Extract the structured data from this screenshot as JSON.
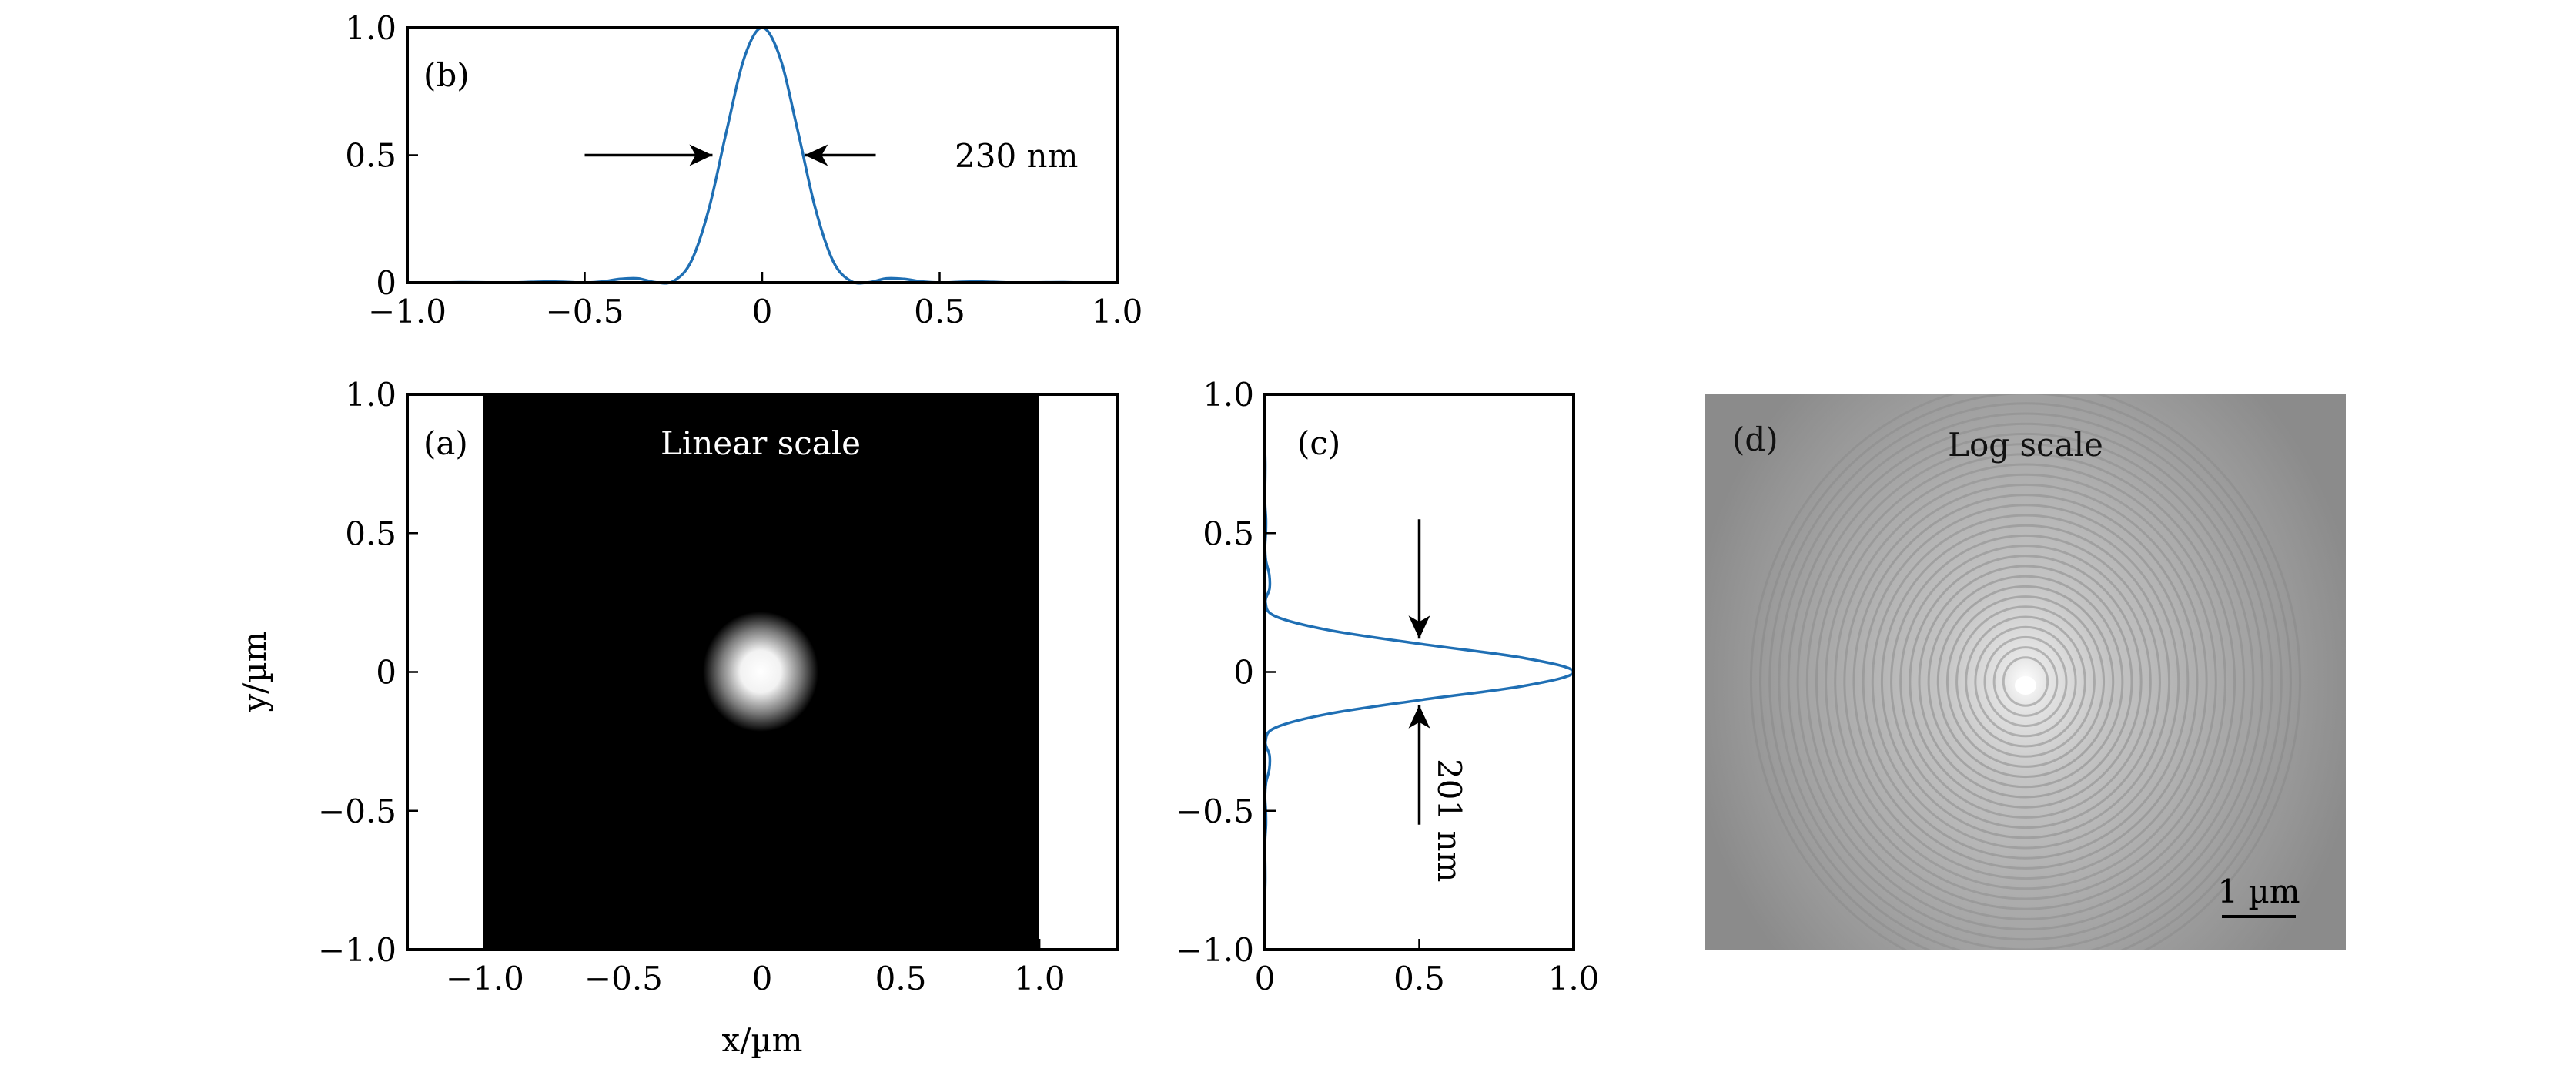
{
  "chart_data": [
    {
      "panel": "(b)",
      "type": "line",
      "xlim": [
        -1.0,
        1.0
      ],
      "ylim": [
        0,
        1.0
      ],
      "xticks": [
        "−1.0",
        "−0.5",
        "0",
        "0.5",
        "1.0"
      ],
      "xtick_values": [
        -1,
        -0.5,
        0,
        0.5,
        1
      ],
      "yticks": [
        "0",
        "0.5",
        "1.0"
      ],
      "ytick_values": [
        0,
        0.5,
        1
      ],
      "line_color": "#1f6fb4",
      "x": [
        -1.0,
        -0.95,
        -0.9,
        -0.85,
        -0.8,
        -0.75,
        -0.7,
        -0.65,
        -0.6,
        -0.55,
        -0.5,
        -0.45,
        -0.4,
        -0.35,
        -0.3,
        -0.25,
        -0.2,
        -0.15,
        -0.1,
        -0.05,
        0,
        0.05,
        0.1,
        0.15,
        0.2,
        0.25,
        0.3,
        0.35,
        0.4,
        0.45,
        0.5,
        0.55,
        0.6,
        0.65,
        0.7,
        0.75,
        0.8,
        0.85,
        0.9,
        0.95,
        1.0
      ],
      "y": [
        0.0004,
        0,
        0.0004,
        0.0014,
        0.0011,
        0.0003,
        0.0003,
        0.0025,
        0.0041,
        0.0024,
        0,
        0.004,
        0.0142,
        0.0164,
        0.0011,
        0.006,
        0.0837,
        0.29,
        0.597,
        0.884,
        1,
        0.884,
        0.597,
        0.29,
        0.0837,
        0.006,
        0.0011,
        0.0164,
        0.0142,
        0.004,
        0,
        0.0024,
        0.0041,
        0.0025,
        0.0003,
        0.0003,
        0.0011,
        0.0014,
        0.0004,
        0,
        0.0004
      ],
      "annotation": "230 nm",
      "arrow_y": 0.5,
      "arrows_from_to": [
        [
          -0.5,
          -0.14
        ],
        [
          0.32,
          0.12
        ]
      ]
    },
    {
      "panel": "(a)",
      "type": "heatmap",
      "title": "Linear scale",
      "xlabel": "x/µm",
      "ylabel": "y/µm",
      "xlim": [
        -1.28,
        1.28
      ],
      "ylim": [
        -1.0,
        1.0
      ],
      "image_extent": [
        -1.0,
        1.0,
        -1.0,
        1.0
      ],
      "xticks": [
        "−1.0",
        "−0.5",
        "0",
        "0.5",
        "1.0"
      ],
      "xtick_values": [
        -1,
        -0.5,
        0,
        0.5,
        1
      ],
      "yticks": [
        "−1.0",
        "−0.5",
        "0",
        "0.5",
        "1.0"
      ],
      "ytick_values": [
        -1,
        -0.5,
        0,
        0.5,
        1
      ],
      "spot_center": [
        0,
        0
      ],
      "colormap": "gray"
    },
    {
      "panel": "(c)",
      "type": "line",
      "xlim": [
        0,
        1.0
      ],
      "ylim": [
        -1.0,
        1.0
      ],
      "xticks": [
        "0",
        "0.5",
        "1.0"
      ],
      "xtick_values": [
        0,
        0.5,
        1
      ],
      "yticks": [
        "−1.0",
        "−0.5",
        "0",
        "0.5",
        "1.0"
      ],
      "ytick_values": [
        -1,
        -0.5,
        0,
        0.5,
        1
      ],
      "line_color": "#1f6fb4",
      "y": [
        -1.0,
        -0.95,
        -0.9,
        -0.85,
        -0.8,
        -0.75,
        -0.7,
        -0.65,
        -0.6,
        -0.55,
        -0.5,
        -0.45,
        -0.4,
        -0.35,
        -0.3,
        -0.25,
        -0.2,
        -0.15,
        -0.1,
        -0.05,
        0,
        0.05,
        0.1,
        0.15,
        0.2,
        0.25,
        0.3,
        0.35,
        0.4,
        0.45,
        0.5,
        0.55,
        0.6,
        0.65,
        0.7,
        0.75,
        0.8,
        0.85,
        0.9,
        0.95,
        1.0
      ],
      "x": [
        0,
        0.0002,
        0.0005,
        0.0001,
        0.0003,
        0.0013,
        0.001,
        0.0003,
        0.0008,
        0.0035,
        0.003,
        0.0005,
        0.0035,
        0.0142,
        0.015,
        0.002,
        0.035,
        0.21,
        0.51,
        0.84,
        1,
        0.84,
        0.51,
        0.21,
        0.035,
        0.002,
        0.015,
        0.0142,
        0.0035,
        0.0005,
        0.003,
        0.0035,
        0.0008,
        0.0003,
        0.001,
        0.0013,
        0.0003,
        0.0001,
        0.0005,
        0.0002,
        0
      ],
      "annotation": "201 nm",
      "arrow_x": 0.5,
      "arrows_from_to": [
        [
          0.55,
          0.12
        ],
        [
          -0.55,
          -0.12
        ]
      ]
    },
    {
      "panel": "(d)",
      "type": "heatmap",
      "title": "Log scale",
      "colormap": "gray",
      "scale_bar": "1 µm"
    }
  ]
}
